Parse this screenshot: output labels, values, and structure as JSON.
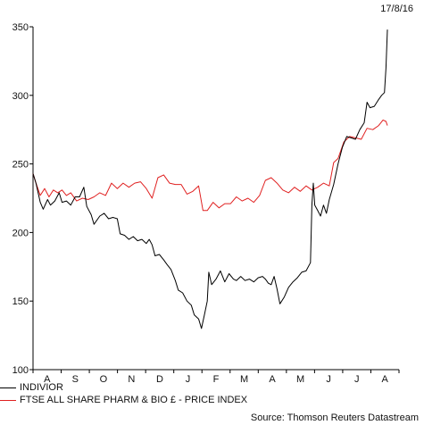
{
  "date_label": "17/8/16",
  "source": "Source: Thomson Reuters Datastream",
  "chart_data": {
    "type": "line",
    "ylim": [
      100,
      350
    ],
    "yticks": [
      100,
      150,
      200,
      250,
      300,
      350
    ],
    "xtick_labels": [
      "A",
      "S",
      "O",
      "N",
      "D",
      "J",
      "F",
      "M",
      "A",
      "M",
      "J",
      "J",
      "A"
    ],
    "x_range": [
      0,
      12.6
    ],
    "grid": false,
    "legend_position": "bottom-left",
    "series": [
      {
        "name": "INDIVIOR",
        "color": "#000000",
        "points": [
          [
            0.0,
            243
          ],
          [
            0.1,
            236
          ],
          [
            0.25,
            222
          ],
          [
            0.35,
            217
          ],
          [
            0.5,
            224
          ],
          [
            0.6,
            220
          ],
          [
            0.75,
            223
          ],
          [
            0.9,
            229
          ],
          [
            1.0,
            222
          ],
          [
            1.15,
            223
          ],
          [
            1.3,
            220
          ],
          [
            1.45,
            226
          ],
          [
            1.6,
            226
          ],
          [
            1.75,
            233
          ],
          [
            1.85,
            219
          ],
          [
            2.0,
            213
          ],
          [
            2.1,
            206
          ],
          [
            2.3,
            212
          ],
          [
            2.45,
            214
          ],
          [
            2.6,
            210
          ],
          [
            2.75,
            211
          ],
          [
            2.9,
            210
          ],
          [
            3.0,
            199
          ],
          [
            3.15,
            198
          ],
          [
            3.3,
            195
          ],
          [
            3.45,
            197
          ],
          [
            3.6,
            194
          ],
          [
            3.75,
            195
          ],
          [
            3.9,
            192
          ],
          [
            4.0,
            195
          ],
          [
            4.1,
            191
          ],
          [
            4.2,
            183
          ],
          [
            4.35,
            184
          ],
          [
            4.5,
            180
          ],
          [
            4.6,
            177
          ],
          [
            4.75,
            173
          ],
          [
            4.9,
            165
          ],
          [
            5.0,
            158
          ],
          [
            5.15,
            156
          ],
          [
            5.3,
            150
          ],
          [
            5.45,
            147
          ],
          [
            5.55,
            140
          ],
          [
            5.7,
            137
          ],
          [
            5.8,
            130
          ],
          [
            5.9,
            140
          ],
          [
            6.0,
            150
          ],
          [
            6.05,
            171
          ],
          [
            6.15,
            162
          ],
          [
            6.3,
            166
          ],
          [
            6.45,
            172
          ],
          [
            6.6,
            164
          ],
          [
            6.75,
            170
          ],
          [
            6.9,
            166
          ],
          [
            7.0,
            165
          ],
          [
            7.15,
            168
          ],
          [
            7.3,
            165
          ],
          [
            7.45,
            166
          ],
          [
            7.6,
            164
          ],
          [
            7.75,
            167
          ],
          [
            7.9,
            168
          ],
          [
            8.0,
            166
          ],
          [
            8.1,
            163
          ],
          [
            8.2,
            162
          ],
          [
            8.3,
            168
          ],
          [
            8.4,
            159
          ],
          [
            8.5,
            148
          ],
          [
            8.65,
            153
          ],
          [
            8.8,
            160
          ],
          [
            8.95,
            164
          ],
          [
            9.1,
            167
          ],
          [
            9.25,
            171
          ],
          [
            9.4,
            172
          ],
          [
            9.55,
            178
          ],
          [
            9.6,
            220
          ],
          [
            9.65,
            236
          ],
          [
            9.7,
            220
          ],
          [
            9.8,
            216
          ],
          [
            9.9,
            212
          ],
          [
            10.0,
            220
          ],
          [
            10.1,
            214
          ],
          [
            10.2,
            224
          ],
          [
            10.35,
            235
          ],
          [
            10.5,
            250
          ],
          [
            10.65,
            262
          ],
          [
            10.8,
            270
          ],
          [
            10.95,
            269
          ],
          [
            11.1,
            268
          ],
          [
            11.25,
            275
          ],
          [
            11.4,
            280
          ],
          [
            11.5,
            295
          ],
          [
            11.6,
            291
          ],
          [
            11.75,
            292
          ],
          [
            11.9,
            297
          ],
          [
            12.0,
            300
          ],
          [
            12.1,
            302
          ],
          [
            12.15,
            320
          ],
          [
            12.2,
            348
          ]
        ]
      },
      {
        "name": "FTSE ALL SHARE PHARM & BIO £ - PRICE INDEX",
        "color": "#e02020",
        "points": [
          [
            0.0,
            243
          ],
          [
            0.1,
            236
          ],
          [
            0.25,
            227
          ],
          [
            0.4,
            232
          ],
          [
            0.55,
            226
          ],
          [
            0.7,
            231
          ],
          [
            0.85,
            229
          ],
          [
            1.0,
            231
          ],
          [
            1.15,
            227
          ],
          [
            1.3,
            229
          ],
          [
            1.5,
            223
          ],
          [
            1.7,
            225
          ],
          [
            1.9,
            224
          ],
          [
            2.1,
            226
          ],
          [
            2.3,
            229
          ],
          [
            2.5,
            227
          ],
          [
            2.7,
            236
          ],
          [
            2.9,
            232
          ],
          [
            3.1,
            236
          ],
          [
            3.3,
            233
          ],
          [
            3.5,
            236
          ],
          [
            3.7,
            237
          ],
          [
            3.9,
            232
          ],
          [
            4.1,
            225
          ],
          [
            4.3,
            240
          ],
          [
            4.5,
            242
          ],
          [
            4.7,
            236
          ],
          [
            4.9,
            235
          ],
          [
            5.1,
            235
          ],
          [
            5.3,
            228
          ],
          [
            5.5,
            230
          ],
          [
            5.7,
            234
          ],
          [
            5.85,
            216
          ],
          [
            6.0,
            216
          ],
          [
            6.2,
            222
          ],
          [
            6.4,
            218
          ],
          [
            6.6,
            221
          ],
          [
            6.8,
            221
          ],
          [
            7.0,
            226
          ],
          [
            7.2,
            223
          ],
          [
            7.4,
            225
          ],
          [
            7.6,
            222
          ],
          [
            7.8,
            227
          ],
          [
            8.0,
            238
          ],
          [
            8.2,
            240
          ],
          [
            8.4,
            236
          ],
          [
            8.6,
            231
          ],
          [
            8.8,
            229
          ],
          [
            9.0,
            233
          ],
          [
            9.2,
            230
          ],
          [
            9.4,
            234
          ],
          [
            9.6,
            231
          ],
          [
            9.8,
            233
          ],
          [
            10.0,
            236
          ],
          [
            10.2,
            234
          ],
          [
            10.35,
            251
          ],
          [
            10.5,
            254
          ],
          [
            10.7,
            266
          ],
          [
            10.9,
            270
          ],
          [
            11.1,
            269
          ],
          [
            11.3,
            268
          ],
          [
            11.5,
            276
          ],
          [
            11.7,
            275
          ],
          [
            11.9,
            278
          ],
          [
            12.05,
            282
          ],
          [
            12.15,
            281
          ],
          [
            12.2,
            278
          ]
        ]
      }
    ]
  }
}
